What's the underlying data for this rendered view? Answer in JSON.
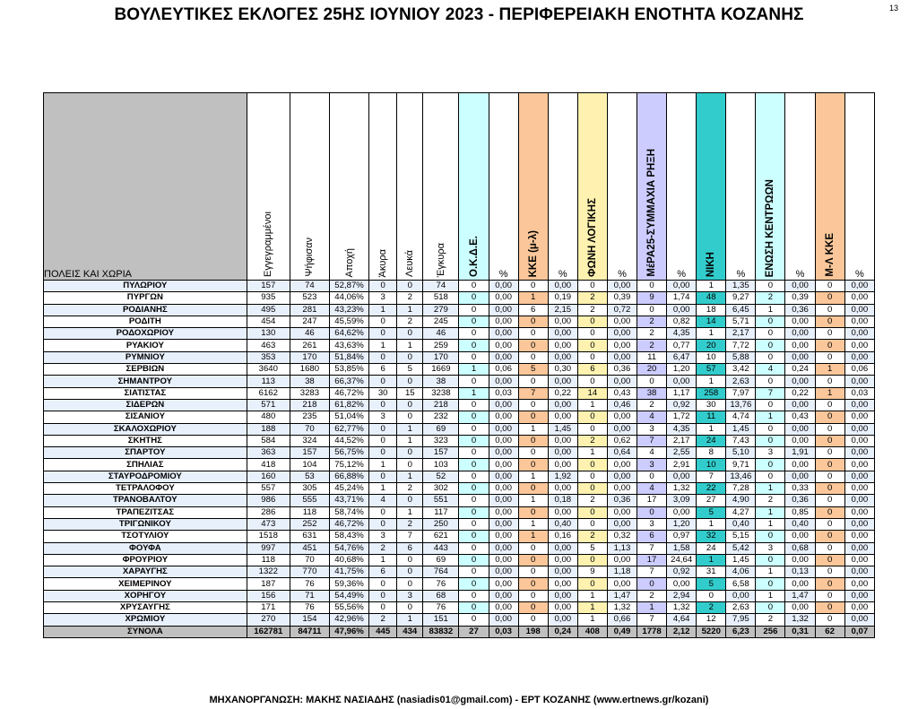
{
  "page": {
    "title": "ΒΟΥΛΕΥΤΙΚΕΣ ΕΚΛΟΓΕΣ 25ΗΣ ΙΟΥΝΙΟΥ 2023 - ΠΕΡΙΦΕΡΕΙΑΚΗ ΕΝΟΤΗΤΑ ΚΟΖΑΝΗΣ",
    "page_number": "13",
    "footer": "ΜΗΧΑΝΟΡΓΑΝΩΣΗ: ΜΑΚΗΣ ΝΑΣΙΑΔΗΣ (nasiadis01@gmail.com) - ΕΡΤ ΚΟΖΑΝΗΣ (www.ertnews.gr/kozani)"
  },
  "colors": {
    "okde": "#ccffff",
    "kke": "#fbc79a",
    "foni": "#fff2b0",
    "mera": "#ccccff",
    "niki": "#33cccc",
    "enosi": "#ccffff",
    "mlkke": "#fbc79a",
    "place_header": "#c0c0c0"
  },
  "table": {
    "headers": {
      "place": "ΠΟΛΕΙΣ ΚΑΙ ΧΩΡΙΑ",
      "registered": "Εγγεγραμμένοι",
      "voted": "Ψήφισαν",
      "abstention": "Αποχή",
      "invalid": "Άκυρα",
      "blank": "Λευκά",
      "valid": "Έγκυρα",
      "okde": "Ο.Κ.Δ.Ε.",
      "kke": "ΚΚΕ (μ-λ)",
      "foni": "ΦΩΝΗ ΛΟΓΙΚΗΣ",
      "mera": "ΜέΡΑ25-ΣΥΜΜΑΧΙΑ ΡΗΞΗ",
      "niki": "ΝΙΚΗ",
      "enosi": "ΕΝΩΣΗ ΚΕΝΤΡΩΩΝ",
      "mlkke": "Μ-Λ ΚΚΕ",
      "pct": "%"
    },
    "rows": [
      [
        "ΠΥΛΩΡΙΟΥ",
        "157",
        "74",
        "52,87%",
        "0",
        "0",
        "74",
        "0",
        "0,00",
        "0",
        "0,00",
        "0",
        "0,00",
        "0",
        "0,00",
        "1",
        "1,35",
        "0",
        "0,00",
        "0",
        "0,00"
      ],
      [
        "ΠΥΡΓΩΝ",
        "935",
        "523",
        "44,06%",
        "3",
        "2",
        "518",
        "0",
        "0,00",
        "1",
        "0,19",
        "2",
        "0,39",
        "9",
        "1,74",
        "48",
        "9,27",
        "2",
        "0,39",
        "0",
        "0,00"
      ],
      [
        "ΡΟΔΙΑΝΗΣ",
        "495",
        "281",
        "43,23%",
        "1",
        "1",
        "279",
        "0",
        "0,00",
        "6",
        "2,15",
        "2",
        "0,72",
        "0",
        "0,00",
        "18",
        "6,45",
        "1",
        "0,36",
        "0",
        "0,00"
      ],
      [
        "ΡΟΔΙΤΗ",
        "454",
        "247",
        "45,59%",
        "0",
        "2",
        "245",
        "0",
        "0,00",
        "0",
        "0,00",
        "0",
        "0,00",
        "2",
        "0,82",
        "14",
        "5,71",
        "0",
        "0,00",
        "0",
        "0,00"
      ],
      [
        "ΡΟΔΟΧΩΡΙΟΥ",
        "130",
        "46",
        "64,62%",
        "0",
        "0",
        "46",
        "0",
        "0,00",
        "0",
        "0,00",
        "0",
        "0,00",
        "2",
        "4,35",
        "1",
        "2,17",
        "0",
        "0,00",
        "0",
        "0,00"
      ],
      [
        "ΡΥΑΚΙΟΥ",
        "463",
        "261",
        "43,63%",
        "1",
        "1",
        "259",
        "0",
        "0,00",
        "0",
        "0,00",
        "0",
        "0,00",
        "2",
        "0,77",
        "20",
        "7,72",
        "0",
        "0,00",
        "0",
        "0,00"
      ],
      [
        "ΡΥΜΝΙΟΥ",
        "353",
        "170",
        "51,84%",
        "0",
        "0",
        "170",
        "0",
        "0,00",
        "0",
        "0,00",
        "0",
        "0,00",
        "11",
        "6,47",
        "10",
        "5,88",
        "0",
        "0,00",
        "0",
        "0,00"
      ],
      [
        "ΣΕΡΒΙΩΝ",
        "3640",
        "1680",
        "53,85%",
        "6",
        "5",
        "1669",
        "1",
        "0,06",
        "5",
        "0,30",
        "6",
        "0,36",
        "20",
        "1,20",
        "57",
        "3,42",
        "4",
        "0,24",
        "1",
        "0,06"
      ],
      [
        "ΣΗΜΑΝΤΡΟΥ",
        "113",
        "38",
        "66,37%",
        "0",
        "0",
        "38",
        "0",
        "0,00",
        "0",
        "0,00",
        "0",
        "0,00",
        "0",
        "0,00",
        "1",
        "2,63",
        "0",
        "0,00",
        "0",
        "0,00"
      ],
      [
        "ΣΙΑΤΙΣΤΑΣ",
        "6162",
        "3283",
        "46,72%",
        "30",
        "15",
        "3238",
        "1",
        "0,03",
        "7",
        "0,22",
        "14",
        "0,43",
        "38",
        "1,17",
        "258",
        "7,97",
        "7",
        "0,22",
        "1",
        "0,03"
      ],
      [
        "ΣΙΔΕΡΩΝ",
        "571",
        "218",
        "61,82%",
        "0",
        "0",
        "218",
        "0",
        "0,00",
        "0",
        "0,00",
        "1",
        "0,46",
        "2",
        "0,92",
        "30",
        "13,76",
        "0",
        "0,00",
        "0",
        "0,00"
      ],
      [
        "ΣΙΣΑΝΙΟΥ",
        "480",
        "235",
        "51,04%",
        "3",
        "0",
        "232",
        "0",
        "0,00",
        "0",
        "0,00",
        "0",
        "0,00",
        "4",
        "1,72",
        "11",
        "4,74",
        "1",
        "0,43",
        "0",
        "0,00"
      ],
      [
        "ΣΚΑΛΟΧΩΡΙΟΥ",
        "188",
        "70",
        "62,77%",
        "0",
        "1",
        "69",
        "0",
        "0,00",
        "1",
        "1,45",
        "0",
        "0,00",
        "3",
        "4,35",
        "1",
        "1,45",
        "0",
        "0,00",
        "0",
        "0,00"
      ],
      [
        "ΣΚΗΤΗΣ",
        "584",
        "324",
        "44,52%",
        "0",
        "1",
        "323",
        "0",
        "0,00",
        "0",
        "0,00",
        "2",
        "0,62",
        "7",
        "2,17",
        "24",
        "7,43",
        "0",
        "0,00",
        "0",
        "0,00"
      ],
      [
        "ΣΠΑΡΤΟΥ",
        "363",
        "157",
        "56,75%",
        "0",
        "0",
        "157",
        "0",
        "0,00",
        "0",
        "0,00",
        "1",
        "0,64",
        "4",
        "2,55",
        "8",
        "5,10",
        "3",
        "1,91",
        "0",
        "0,00"
      ],
      [
        "ΣΠΗΛΙΑΣ",
        "418",
        "104",
        "75,12%",
        "1",
        "0",
        "103",
        "0",
        "0,00",
        "0",
        "0,00",
        "0",
        "0,00",
        "3",
        "2,91",
        "10",
        "9,71",
        "0",
        "0,00",
        "0",
        "0,00"
      ],
      [
        "ΣΤΑΥΡΟΔΡΟΜΙΟΥ",
        "160",
        "53",
        "66,88%",
        "0",
        "1",
        "52",
        "0",
        "0,00",
        "1",
        "1,92",
        "0",
        "0,00",
        "0",
        "0,00",
        "7",
        "13,46",
        "0",
        "0,00",
        "0",
        "0,00"
      ],
      [
        "ΤΕΤΡΑΛΟΦΟΥ",
        "557",
        "305",
        "45,24%",
        "1",
        "2",
        "302",
        "0",
        "0,00",
        "0",
        "0,00",
        "0",
        "0,00",
        "4",
        "1,32",
        "22",
        "7,28",
        "1",
        "0,33",
        "0",
        "0,00"
      ],
      [
        "ΤΡΑΝΟΒΑΛΤΟΥ",
        "986",
        "555",
        "43,71%",
        "4",
        "0",
        "551",
        "0",
        "0,00",
        "1",
        "0,18",
        "2",
        "0,36",
        "17",
        "3,09",
        "27",
        "4,90",
        "2",
        "0,36",
        "0",
        "0,00"
      ],
      [
        "ΤΡΑΠΕΖΙΤΣΑΣ",
        "286",
        "118",
        "58,74%",
        "0",
        "1",
        "117",
        "0",
        "0,00",
        "0",
        "0,00",
        "0",
        "0,00",
        "0",
        "0,00",
        "5",
        "4,27",
        "1",
        "0,85",
        "0",
        "0,00"
      ],
      [
        "ΤΡΙΓΩΝΙΚΟΥ",
        "473",
        "252",
        "46,72%",
        "0",
        "2",
        "250",
        "0",
        "0,00",
        "1",
        "0,40",
        "0",
        "0,00",
        "3",
        "1,20",
        "1",
        "0,40",
        "1",
        "0,40",
        "0",
        "0,00"
      ],
      [
        "ΤΣΟΤΥΛΙΟΥ",
        "1518",
        "631",
        "58,43%",
        "3",
        "7",
        "621",
        "0",
        "0,00",
        "1",
        "0,16",
        "2",
        "0,32",
        "6",
        "0,97",
        "32",
        "5,15",
        "0",
        "0,00",
        "0",
        "0,00"
      ],
      [
        "ΦΟΥΦΑ",
        "997",
        "451",
        "54,76%",
        "2",
        "6",
        "443",
        "0",
        "0,00",
        "0",
        "0,00",
        "5",
        "1,13",
        "7",
        "1,58",
        "24",
        "5,42",
        "3",
        "0,68",
        "0",
        "0,00"
      ],
      [
        "ΦΡΟΥΡΙΟΥ",
        "118",
        "70",
        "40,68%",
        "1",
        "0",
        "69",
        "0",
        "0,00",
        "0",
        "0,00",
        "0",
        "0,00",
        "17",
        "24,64",
        "1",
        "1,45",
        "0",
        "0,00",
        "0",
        "0,00"
      ],
      [
        "ΧΑΡΑΥΓΗΣ",
        "1322",
        "770",
        "41,75%",
        "6",
        "0",
        "764",
        "0",
        "0,00",
        "0",
        "0,00",
        "9",
        "1,18",
        "7",
        "0,92",
        "31",
        "4,06",
        "1",
        "0,13",
        "0",
        "0,00"
      ],
      [
        "ΧΕΙΜΕΡΙΝΟΥ",
        "187",
        "76",
        "59,36%",
        "0",
        "0",
        "76",
        "0",
        "0,00",
        "0",
        "0,00",
        "0",
        "0,00",
        "0",
        "0,00",
        "5",
        "6,58",
        "0",
        "0,00",
        "0",
        "0,00"
      ],
      [
        "ΧΟΡΗΓΟΥ",
        "156",
        "71",
        "54,49%",
        "0",
        "3",
        "68",
        "0",
        "0,00",
        "0",
        "0,00",
        "1",
        "1,47",
        "2",
        "2,94",
        "0",
        "0,00",
        "1",
        "1,47",
        "0",
        "0,00"
      ],
      [
        "ΧΡΥΣΑΥΓΗΣ",
        "171",
        "76",
        "55,56%",
        "0",
        "0",
        "76",
        "0",
        "0,00",
        "0",
        "0,00",
        "1",
        "1,32",
        "1",
        "1,32",
        "2",
        "2,63",
        "0",
        "0,00",
        "0",
        "0,00"
      ],
      [
        "ΧΡΩΜΙΟΥ",
        "270",
        "154",
        "42,96%",
        "2",
        "1",
        "151",
        "0",
        "0,00",
        "0",
        "0,00",
        "1",
        "0,66",
        "7",
        "4,64",
        "12",
        "7,95",
        "2",
        "1,32",
        "0",
        "0,00"
      ]
    ],
    "totals": [
      "ΣΥΝΟΛΑ",
      "162781",
      "84711",
      "47,96%",
      "445",
      "434",
      "83832",
      "27",
      "0,03",
      "198",
      "0,24",
      "408",
      "0,49",
      "1778",
      "2,12",
      "5220",
      "6,23",
      "256",
      "0,31",
      "62",
      "0,07"
    ]
  }
}
